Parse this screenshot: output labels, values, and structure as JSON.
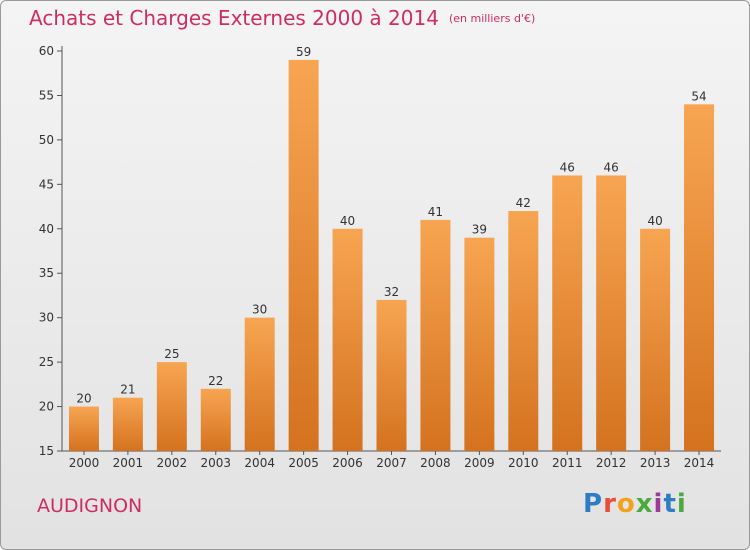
{
  "header": {
    "title": "Achats et Charges Externes 2000 à 2014",
    "unit": "(en milliers d'€)"
  },
  "footer": {
    "town": "AUDIGNON",
    "logo": "Proxiti"
  },
  "colors": {
    "title": "#cc2e63",
    "bar_top": "#f7a552",
    "bar_bottom": "#d4721f",
    "axis": "#555555"
  },
  "chart_data": {
    "type": "bar",
    "categories": [
      "2000",
      "2001",
      "2002",
      "2003",
      "2004",
      "2005",
      "2006",
      "2007",
      "2008",
      "2009",
      "2010",
      "2011",
      "2012",
      "2013",
      "2014"
    ],
    "values": [
      20,
      21,
      25,
      22,
      30,
      59,
      40,
      32,
      41,
      39,
      42,
      46,
      46,
      40,
      54
    ],
    "ylim": [
      15,
      60
    ],
    "yticks": [
      15,
      20,
      25,
      30,
      35,
      40,
      45,
      50,
      55,
      60
    ],
    "grid": false,
    "data_labels": true
  }
}
